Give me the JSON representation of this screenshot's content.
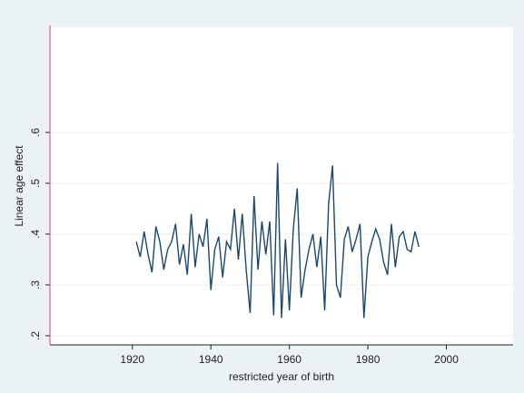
{
  "chart_data": {
    "type": "line",
    "x_label": "restricted year of birth",
    "y_label": "Linear age effect",
    "x": [
      1921,
      1922,
      1923,
      1924,
      1925,
      1926,
      1927,
      1928,
      1929,
      1930,
      1931,
      1932,
      1933,
      1934,
      1935,
      1936,
      1937,
      1938,
      1939,
      1940,
      1941,
      1942,
      1943,
      1944,
      1945,
      1946,
      1947,
      1948,
      1949,
      1950,
      1951,
      1952,
      1953,
      1954,
      1955,
      1956,
      1957,
      1958,
      1959,
      1960,
      1961,
      1962,
      1963,
      1964,
      1965,
      1966,
      1967,
      1968,
      1969,
      1970,
      1971,
      1972,
      1973,
      1974,
      1975,
      1976,
      1977,
      1978,
      1979,
      1980,
      1981,
      1982,
      1983,
      1984,
      1985,
      1986,
      1987,
      1988,
      1989,
      1990,
      1991,
      1992,
      1993
    ],
    "series": [
      {
        "color": "#1a476f",
        "values": [
          0.385,
          0.355,
          0.405,
          0.36,
          0.325,
          0.415,
          0.385,
          0.33,
          0.37,
          0.385,
          0.42,
          0.34,
          0.38,
          0.32,
          0.44,
          0.335,
          0.4,
          0.375,
          0.43,
          0.29,
          0.37,
          0.395,
          0.315,
          0.385,
          0.37,
          0.45,
          0.35,
          0.44,
          0.33,
          0.245,
          0.475,
          0.33,
          0.425,
          0.36,
          0.425,
          0.24,
          0.54,
          0.235,
          0.39,
          0.25,
          0.41,
          0.49,
          0.275,
          0.33,
          0.37,
          0.4,
          0.335,
          0.395,
          0.25,
          0.46,
          0.535,
          0.3,
          0.275,
          0.39,
          0.415,
          0.365,
          0.39,
          0.42,
          0.235,
          0.355,
          0.385,
          0.41,
          0.39,
          0.345,
          0.32,
          0.42,
          0.335,
          0.395,
          0.405,
          0.37,
          0.365,
          0.405,
          0.375
        ]
      }
    ],
    "xlim": [
      1899,
      2017
    ],
    "ylim": [
      0.182,
      0.807
    ],
    "xticks": [
      1920,
      1940,
      1960,
      1980,
      2000
    ],
    "yticks": [
      {
        "value": 0.2,
        "label": ".2"
      },
      {
        "value": 0.3,
        "label": ".3"
      },
      {
        "value": 0.4,
        "label": ".4"
      },
      {
        "value": 0.5,
        "label": ".5"
      },
      {
        "value": 0.6,
        "label": ".6"
      }
    ],
    "grid": true
  }
}
